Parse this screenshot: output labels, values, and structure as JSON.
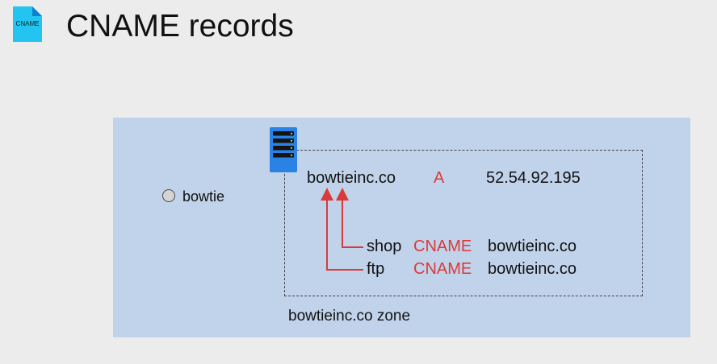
{
  "header": {
    "icon_text": "CNAME",
    "title": "CNAME records"
  },
  "diagram": {
    "project_label": "bowtie",
    "zone_label": "bowtieinc.co zone",
    "records": [
      {
        "name": "bowtieinc.co",
        "type": "A",
        "value": "52.54.92.195"
      },
      {
        "name": "shop",
        "type": "CNAME",
        "value": "bowtieinc.co"
      },
      {
        "name": "ftp",
        "type": "CNAME",
        "value": "bowtieinc.co"
      }
    ]
  },
  "colors": {
    "background": "#ececec",
    "panel": "#c1d3ea",
    "accent_red": "#d93a3a",
    "server_blue": "#2b82e5",
    "file_icon": "#23c4ef"
  },
  "icons": {
    "title": "cname-file-icon",
    "server": "server-icon",
    "project": "project-dot-icon"
  }
}
